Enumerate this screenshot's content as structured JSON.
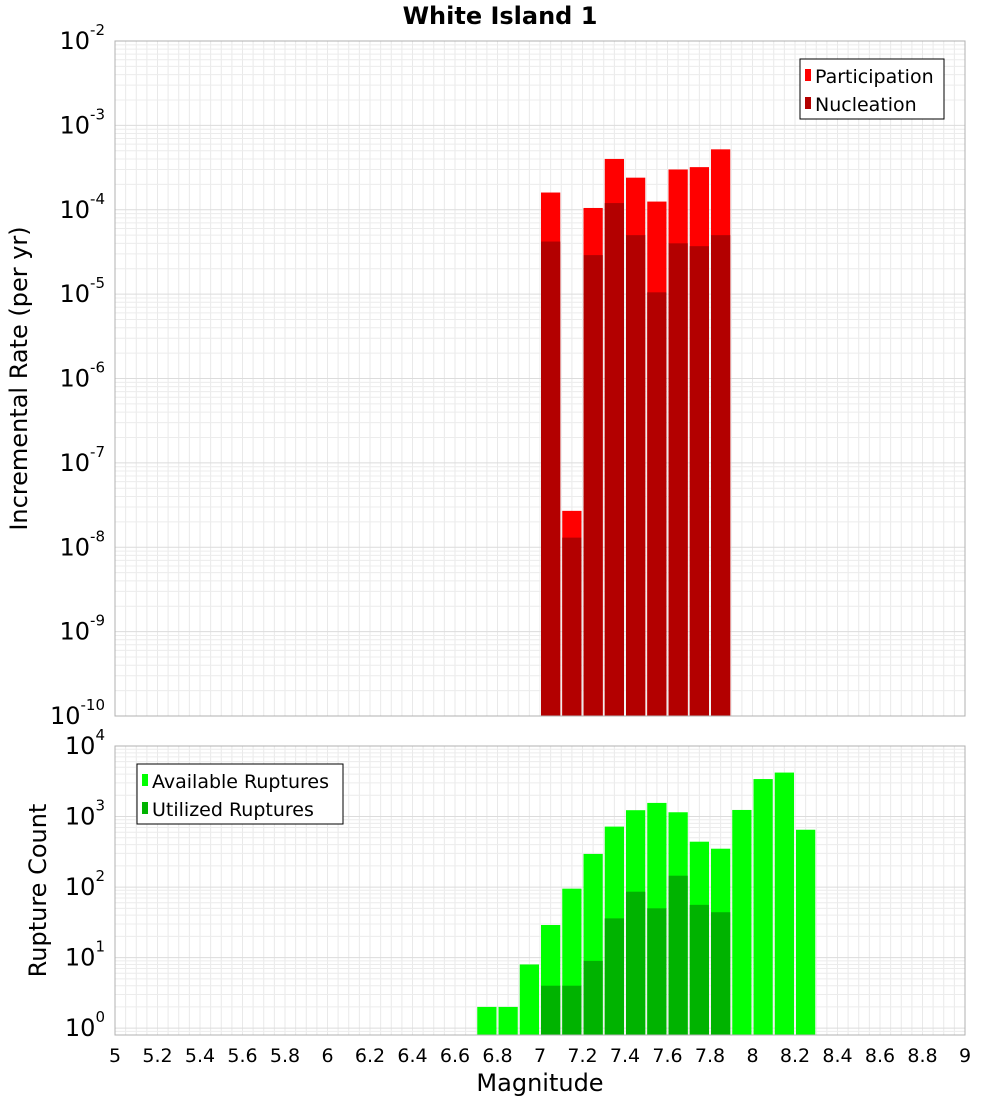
{
  "title": "White Island 1",
  "chart_data": [
    {
      "type": "bar",
      "ylabel": "Incremental Rate (per yr)",
      "yscale": "log",
      "ylim": [
        1e-10,
        0.01
      ],
      "y_tick_exponents": [
        -10,
        -9,
        -8,
        -7,
        -6,
        -5,
        -4,
        -3,
        -2
      ],
      "xlim": [
        5,
        9
      ],
      "grid": true,
      "legend_position": "top-right",
      "bin_width": 0.1,
      "x": [
        7.05,
        7.15,
        7.25,
        7.35,
        7.45,
        7.55,
        7.65,
        7.75,
        7.85
      ],
      "series": [
        {
          "name": "Participation",
          "color": "#ff0000",
          "values": [
            0.00016,
            2.7e-08,
            0.000105,
            0.0004,
            0.00024,
            0.000125,
            0.0003,
            0.00032,
            0.00052
          ]
        },
        {
          "name": "Nucleation",
          "color": "#b30000",
          "values": [
            4.2e-05,
            1.3e-08,
            2.9e-05,
            0.00012,
            5e-05,
            1.05e-05,
            4e-05,
            3.7e-05,
            5e-05
          ]
        }
      ]
    },
    {
      "type": "bar",
      "ylabel": "Rupture Count",
      "xlabel": "Magnitude",
      "yscale": "log",
      "ylim": [
        0.8,
        10000
      ],
      "y_tick_exponents": [
        0,
        1,
        2,
        3,
        4
      ],
      "xlim": [
        5,
        9
      ],
      "x_ticks": [
        "5",
        "5.2",
        "5.4",
        "5.6",
        "5.8",
        "6",
        "6.2",
        "6.4",
        "6.6",
        "6.8",
        "7",
        "7.2",
        "7.4",
        "7.6",
        "7.8",
        "8",
        "8.2",
        "8.4",
        "8.6",
        "8.8",
        "9"
      ],
      "grid": true,
      "legend_position": "top-left",
      "bin_width": 0.1,
      "series": [
        {
          "name": "Available Ruptures",
          "color": "#00ff00",
          "x": [
            6.75,
            6.85,
            6.95,
            7.05,
            7.15,
            7.25,
            7.35,
            7.45,
            7.55,
            7.65,
            7.75,
            7.85,
            7.95,
            8.05,
            8.15,
            8.25
          ],
          "values": [
            2,
            2,
            8,
            29,
            95,
            295,
            720,
            1230,
            1560,
            1150,
            440,
            350,
            1240,
            3400,
            4200,
            650
          ]
        },
        {
          "name": "Utilized Ruptures",
          "color": "#00b300",
          "x": [
            7.05,
            7.15,
            7.25,
            7.35,
            7.45,
            7.55,
            7.65,
            7.75,
            7.85
          ],
          "values": [
            4,
            4,
            9,
            36,
            86,
            50,
            145,
            56,
            44
          ]
        }
      ]
    }
  ]
}
